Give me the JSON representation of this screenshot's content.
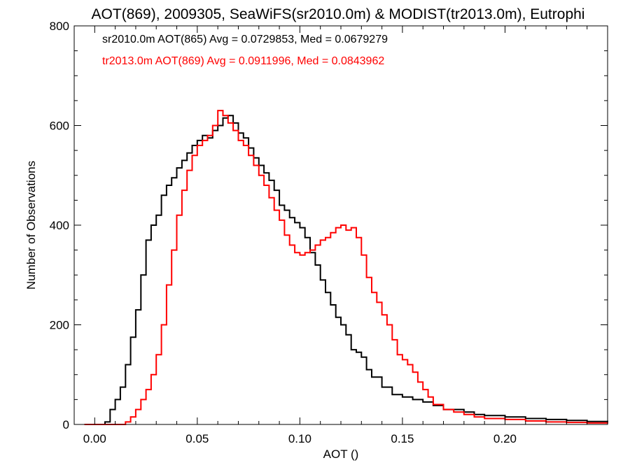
{
  "chart_data": {
    "type": "line",
    "title": "AOT(869), 2009305, SeaWiFS(sr2010.0m) & MODIST(tr2013.0m), Eutrophi",
    "xlabel": "AOT ()",
    "ylabel": "Number of Observations",
    "xlim": [
      -0.01,
      0.25
    ],
    "ylim": [
      0,
      800
    ],
    "xticks": [
      0.0,
      0.05,
      0.1,
      0.15,
      0.2
    ],
    "xtick_labels": [
      "0.00",
      "0.05",
      "0.10",
      "0.15",
      "0.20"
    ],
    "yticks": [
      0,
      200,
      400,
      600,
      800
    ],
    "ytick_labels": [
      "0",
      "200",
      "400",
      "600",
      "800"
    ],
    "legend_position": "top-left",
    "series": [
      {
        "name": "sr2010.0m AOT(865) Avg = 0.0729853, Med = 0.0679279",
        "color": "#000000",
        "x": [
          -0.005,
          0.0,
          0.005,
          0.0075,
          0.01,
          0.0125,
          0.015,
          0.0175,
          0.02,
          0.0225,
          0.025,
          0.0275,
          0.03,
          0.0325,
          0.035,
          0.0375,
          0.04,
          0.0425,
          0.045,
          0.0475,
          0.05,
          0.0525,
          0.055,
          0.0575,
          0.06,
          0.0625,
          0.065,
          0.0675,
          0.07,
          0.0725,
          0.075,
          0.0775,
          0.08,
          0.0825,
          0.085,
          0.0875,
          0.09,
          0.0925,
          0.095,
          0.0975,
          0.1,
          0.1025,
          0.105,
          0.1075,
          0.11,
          0.1125,
          0.115,
          0.1175,
          0.12,
          0.1225,
          0.125,
          0.1275,
          0.13,
          0.1325,
          0.135,
          0.14,
          0.145,
          0.15,
          0.155,
          0.16,
          0.165,
          0.17,
          0.175,
          0.18,
          0.185,
          0.19,
          0.2,
          0.21,
          0.22,
          0.23,
          0.24,
          0.25
        ],
        "y": [
          0,
          0,
          5,
          30,
          50,
          75,
          120,
          175,
          230,
          300,
          370,
          400,
          420,
          460,
          480,
          495,
          515,
          530,
          545,
          560,
          570,
          580,
          575,
          590,
          600,
          615,
          620,
          605,
          585,
          575,
          555,
          535,
          520,
          505,
          490,
          470,
          440,
          430,
          415,
          405,
          395,
          375,
          345,
          320,
          290,
          265,
          240,
          215,
          200,
          180,
          150,
          145,
          135,
          110,
          95,
          75,
          60,
          55,
          50,
          45,
          38,
          30,
          30,
          25,
          20,
          18,
          15,
          12,
          10,
          8,
          6,
          5
        ]
      },
      {
        "name": "tr2013.0m AOT(869) Avg = 0.0911996, Med = 0.0843962",
        "color": "#ff0000",
        "x": [
          -0.005,
          0.0,
          0.01,
          0.015,
          0.0175,
          0.02,
          0.0225,
          0.025,
          0.0275,
          0.03,
          0.0325,
          0.035,
          0.0375,
          0.04,
          0.0425,
          0.045,
          0.0475,
          0.05,
          0.0525,
          0.055,
          0.0575,
          0.06,
          0.0625,
          0.065,
          0.0675,
          0.07,
          0.0725,
          0.075,
          0.0775,
          0.08,
          0.0825,
          0.085,
          0.0875,
          0.09,
          0.0925,
          0.095,
          0.0975,
          0.1,
          0.1025,
          0.105,
          0.1075,
          0.11,
          0.1125,
          0.115,
          0.1175,
          0.12,
          0.1225,
          0.125,
          0.1275,
          0.13,
          0.1325,
          0.135,
          0.1375,
          0.14,
          0.1425,
          0.145,
          0.1475,
          0.15,
          0.1525,
          0.155,
          0.1575,
          0.16,
          0.1625,
          0.165,
          0.17,
          0.175,
          0.18,
          0.185,
          0.19,
          0.2,
          0.21,
          0.22,
          0.23,
          0.24,
          0.25
        ],
        "y": [
          0,
          0,
          0,
          5,
          15,
          30,
          50,
          70,
          100,
          140,
          200,
          280,
          350,
          420,
          470,
          510,
          540,
          560,
          570,
          580,
          600,
          630,
          620,
          605,
          590,
          570,
          560,
          540,
          520,
          500,
          480,
          455,
          430,
          410,
          380,
          360,
          345,
          340,
          345,
          350,
          360,
          370,
          375,
          385,
          395,
          400,
          390,
          395,
          375,
          340,
          295,
          265,
          245,
          220,
          200,
          170,
          140,
          130,
          120,
          105,
          85,
          70,
          55,
          40,
          30,
          25,
          20,
          15,
          12,
          10,
          7,
          5,
          4,
          3,
          2
        ]
      }
    ]
  }
}
